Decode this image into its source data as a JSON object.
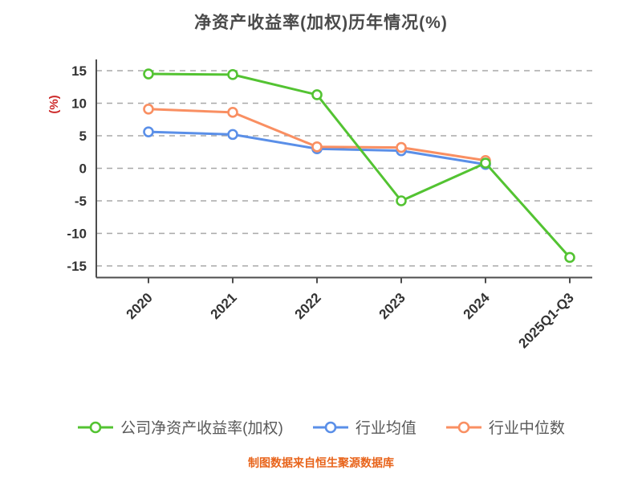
{
  "title": "净资产收益率(加权)历年情况(%)",
  "caption": "制图数据来自恒生聚源数据库",
  "colors": {
    "title": "#4a4a4a",
    "caption": "#e8641b",
    "axis": "#4d4d4d",
    "grid": "#a8a8a8",
    "tick_text": "#333333",
    "ylabel": "#cc2929",
    "legend_text": "#595959",
    "series_green": "#53c332",
    "series_blue": "#5a8fe8",
    "series_orange": "#f98f62"
  },
  "chart_data": {
    "type": "line",
    "title": "净资产收益率(加权)历年情况(%)",
    "xlabel": "",
    "ylabel": "(%)",
    "categories": [
      "2020",
      "2021",
      "2022",
      "2023",
      "2024",
      "2025Q1-Q3"
    ],
    "yticks": [
      15,
      10,
      5,
      0,
      -5,
      -10,
      -15
    ],
    "ylim": [
      -15,
      15
    ],
    "grid": "horizontal-dashed",
    "legend_position": "bottom",
    "marker": "open-circle",
    "series": [
      {
        "name": "公司净资产收益率(加权)",
        "color": "#53c332",
        "values": [
          14.5,
          14.4,
          11.3,
          -5.0,
          0.8,
          -13.7
        ]
      },
      {
        "name": "行业均值",
        "color": "#5a8fe8",
        "values": [
          5.6,
          5.2,
          3.0,
          2.7,
          0.6,
          null
        ]
      },
      {
        "name": "行业中位数",
        "color": "#f98f62",
        "values": [
          9.1,
          8.6,
          3.3,
          3.2,
          1.2,
          null
        ]
      }
    ]
  }
}
